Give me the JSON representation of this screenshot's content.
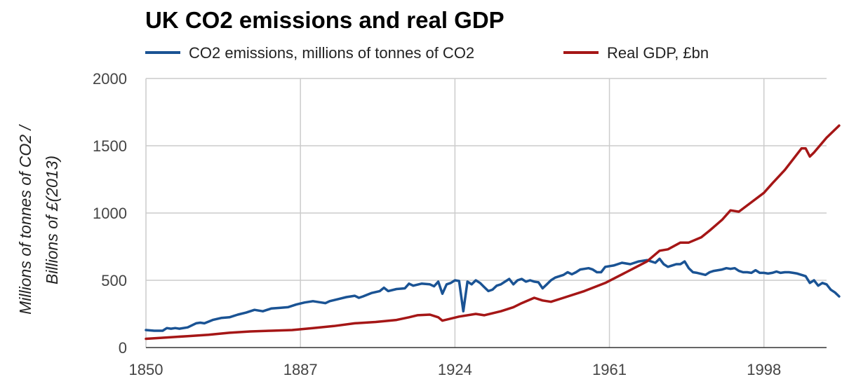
{
  "chart_data": {
    "type": "line",
    "title": "UK CO2 emissions and real GDP",
    "xlabel": "",
    "ylabel": [
      "Millions of tonnes of CO2 /",
      "Billions of £(2013)"
    ],
    "xlim": [
      1850,
      2013
    ],
    "ylim": [
      0,
      2000
    ],
    "x_ticks": [
      1850,
      1887,
      1924,
      1961,
      1998
    ],
    "y_ticks": [
      0,
      500,
      1000,
      1500,
      2000
    ],
    "grid": true,
    "legend_position": "top",
    "series": [
      {
        "name": "CO2 emissions, millions of tonnes of CO2",
        "color": "#1a5394",
        "points": [
          [
            1850,
            130
          ],
          [
            1852,
            125
          ],
          [
            1854,
            125
          ],
          [
            1855,
            145
          ],
          [
            1856,
            140
          ],
          [
            1857,
            145
          ],
          [
            1858,
            140
          ],
          [
            1860,
            150
          ],
          [
            1862,
            180
          ],
          [
            1863,
            185
          ],
          [
            1864,
            180
          ],
          [
            1866,
            205
          ],
          [
            1868,
            220
          ],
          [
            1870,
            225
          ],
          [
            1872,
            245
          ],
          [
            1874,
            260
          ],
          [
            1876,
            280
          ],
          [
            1878,
            270
          ],
          [
            1880,
            290
          ],
          [
            1882,
            295
          ],
          [
            1884,
            300
          ],
          [
            1886,
            320
          ],
          [
            1888,
            335
          ],
          [
            1890,
            345
          ],
          [
            1892,
            335
          ],
          [
            1893,
            330
          ],
          [
            1894,
            345
          ],
          [
            1896,
            360
          ],
          [
            1898,
            375
          ],
          [
            1900,
            385
          ],
          [
            1901,
            370
          ],
          [
            1902,
            380
          ],
          [
            1904,
            405
          ],
          [
            1906,
            420
          ],
          [
            1907,
            445
          ],
          [
            1908,
            420
          ],
          [
            1910,
            435
          ],
          [
            1912,
            440
          ],
          [
            1913,
            475
          ],
          [
            1914,
            460
          ],
          [
            1916,
            475
          ],
          [
            1918,
            470
          ],
          [
            1919,
            455
          ],
          [
            1920,
            490
          ],
          [
            1921,
            400
          ],
          [
            1922,
            470
          ],
          [
            1923,
            480
          ],
          [
            1924,
            500
          ],
          [
            1925,
            495
          ],
          [
            1926,
            270
          ],
          [
            1927,
            490
          ],
          [
            1928,
            470
          ],
          [
            1929,
            500
          ],
          [
            1930,
            480
          ],
          [
            1931,
            450
          ],
          [
            1932,
            420
          ],
          [
            1933,
            430
          ],
          [
            1934,
            460
          ],
          [
            1935,
            470
          ],
          [
            1936,
            490
          ],
          [
            1937,
            510
          ],
          [
            1938,
            470
          ],
          [
            1939,
            500
          ],
          [
            1940,
            510
          ],
          [
            1941,
            490
          ],
          [
            1942,
            500
          ],
          [
            1943,
            490
          ],
          [
            1944,
            485
          ],
          [
            1945,
            440
          ],
          [
            1946,
            470
          ],
          [
            1947,
            500
          ],
          [
            1948,
            520
          ],
          [
            1950,
            540
          ],
          [
            1951,
            560
          ],
          [
            1952,
            545
          ],
          [
            1953,
            560
          ],
          [
            1954,
            580
          ],
          [
            1955,
            585
          ],
          [
            1956,
            590
          ],
          [
            1957,
            580
          ],
          [
            1958,
            560
          ],
          [
            1959,
            560
          ],
          [
            1960,
            600
          ],
          [
            1962,
            610
          ],
          [
            1964,
            630
          ],
          [
            1966,
            620
          ],
          [
            1968,
            640
          ],
          [
            1970,
            650
          ],
          [
            1972,
            630
          ],
          [
            1973,
            660
          ],
          [
            1974,
            620
          ],
          [
            1975,
            600
          ],
          [
            1976,
            610
          ],
          [
            1977,
            620
          ],
          [
            1978,
            620
          ],
          [
            1979,
            640
          ],
          [
            1980,
            590
          ],
          [
            1981,
            560
          ],
          [
            1982,
            555
          ],
          [
            1984,
            540
          ],
          [
            1985,
            560
          ],
          [
            1986,
            570
          ],
          [
            1987,
            575
          ],
          [
            1988,
            580
          ],
          [
            1989,
            590
          ],
          [
            1990,
            585
          ],
          [
            1991,
            590
          ],
          [
            1992,
            570
          ],
          [
            1993,
            560
          ],
          [
            1994,
            560
          ],
          [
            1995,
            555
          ],
          [
            1996,
            575
          ],
          [
            1997,
            555
          ],
          [
            1998,
            555
          ],
          [
            1999,
            550
          ],
          [
            2000,
            555
          ],
          [
            2001,
            565
          ],
          [
            2002,
            555
          ],
          [
            2003,
            560
          ],
          [
            2004,
            560
          ],
          [
            2005,
            555
          ],
          [
            2006,
            550
          ],
          [
            2007,
            540
          ],
          [
            2008,
            530
          ],
          [
            2009,
            480
          ],
          [
            2010,
            500
          ],
          [
            2011,
            460
          ],
          [
            2012,
            480
          ],
          [
            2013,
            470
          ],
          [
            2014,
            430
          ],
          [
            2015,
            410
          ],
          [
            2016,
            380
          ]
        ]
      },
      {
        "name": "Real GDP, £bn",
        "color": "#a51616",
        "points": [
          [
            1850,
            65
          ],
          [
            1855,
            75
          ],
          [
            1860,
            85
          ],
          [
            1865,
            95
          ],
          [
            1870,
            110
          ],
          [
            1875,
            120
          ],
          [
            1880,
            125
          ],
          [
            1885,
            130
          ],
          [
            1890,
            145
          ],
          [
            1895,
            160
          ],
          [
            1900,
            180
          ],
          [
            1905,
            190
          ],
          [
            1910,
            205
          ],
          [
            1913,
            225
          ],
          [
            1915,
            240
          ],
          [
            1918,
            245
          ],
          [
            1920,
            225
          ],
          [
            1921,
            200
          ],
          [
            1925,
            230
          ],
          [
            1929,
            250
          ],
          [
            1931,
            240
          ],
          [
            1935,
            270
          ],
          [
            1938,
            300
          ],
          [
            1940,
            330
          ],
          [
            1943,
            370
          ],
          [
            1945,
            350
          ],
          [
            1947,
            340
          ],
          [
            1950,
            370
          ],
          [
            1955,
            420
          ],
          [
            1960,
            480
          ],
          [
            1965,
            560
          ],
          [
            1970,
            640
          ],
          [
            1973,
            720
          ],
          [
            1975,
            730
          ],
          [
            1978,
            780
          ],
          [
            1980,
            780
          ],
          [
            1983,
            820
          ],
          [
            1985,
            870
          ],
          [
            1988,
            950
          ],
          [
            1990,
            1020
          ],
          [
            1992,
            1010
          ],
          [
            1995,
            1080
          ],
          [
            1998,
            1150
          ],
          [
            2000,
            1220
          ],
          [
            2003,
            1320
          ],
          [
            2005,
            1400
          ],
          [
            2007,
            1480
          ],
          [
            2008,
            1480
          ],
          [
            2009,
            1420
          ],
          [
            2010,
            1450
          ],
          [
            2013,
            1560
          ],
          [
            2016,
            1650
          ]
        ]
      }
    ]
  }
}
